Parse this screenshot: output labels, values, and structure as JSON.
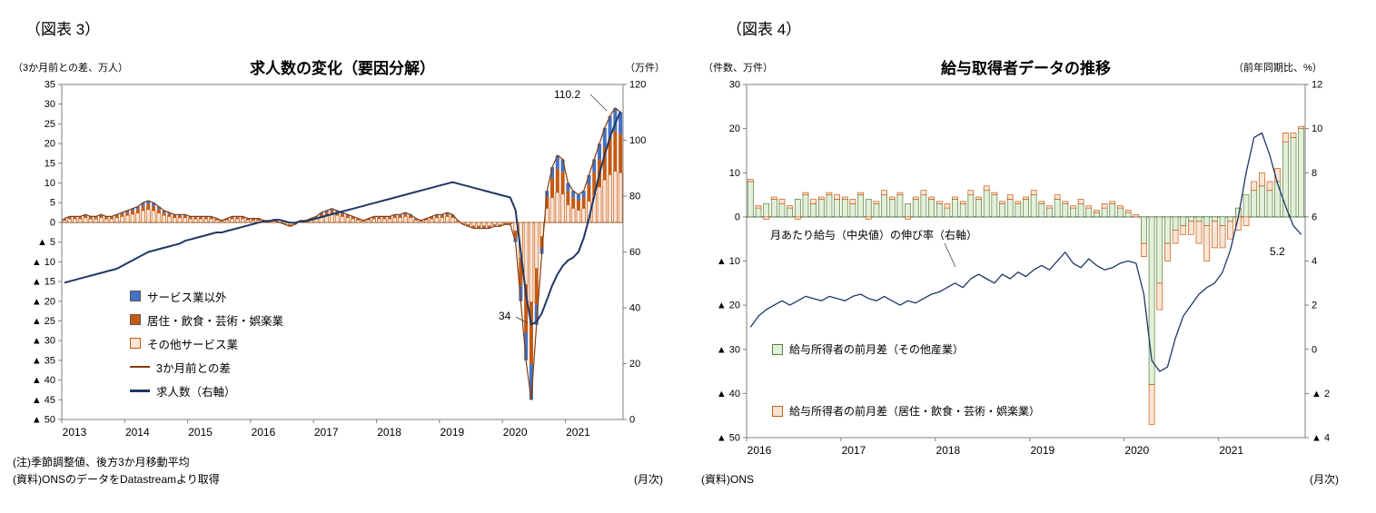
{
  "page": {
    "left": {
      "fig_label": "（図表 3）",
      "note1": "(注)季節調整値、後方3か月移動平均",
      "note2": "(資料)ONSのデータをDatastreamより取得",
      "freq": "(月次)"
    },
    "right": {
      "fig_label": "（図表 4）",
      "note1": "(資料)ONS",
      "freq": "(月次)"
    }
  },
  "chart_data": [
    {
      "type": "bar+line",
      "title": "求人数の変化（要因分解）",
      "left_axis_caption": "（3か月前との差、万人）",
      "right_axis_caption": "（万件）",
      "left_range": [
        -50,
        35
      ],
      "right_range": [
        0,
        120
      ],
      "left_ticks": [
        "35",
        "30",
        "25",
        "20",
        "15",
        "10",
        "5",
        "0",
        "▲ 5",
        "▲ 10",
        "▲ 15",
        "▲ 20",
        "▲ 25",
        "▲ 30",
        "▲ 35",
        "▲ 40",
        "▲ 45",
        "▲ 50"
      ],
      "right_ticks": [
        "120",
        "100",
        "80",
        "60",
        "40",
        "20",
        "0"
      ],
      "x_ticks": [
        "2013",
        "2014",
        "2015",
        "2016",
        "2017",
        "2018",
        "2019",
        "2020",
        "2021"
      ],
      "annotations": {
        "peak": "110.2",
        "trough": "34"
      },
      "series": [
        {
          "name": "その他サービス業",
          "color": "#FBE5D6",
          "stroke": "#C55A11",
          "values": [
            0.5,
            0.9,
            0.9,
            0.9,
            1.2,
            0.9,
            0.9,
            1.2,
            0.9,
            0.9,
            1.2,
            1.5,
            1.8,
            2.1,
            2.4,
            3,
            3.3,
            3,
            2.4,
            1.8,
            1.5,
            1.2,
            1.2,
            1.2,
            0.9,
            0.9,
            0.9,
            0.9,
            0.9,
            0.6,
            0.3,
            0.6,
            0.9,
            0.9,
            0.9,
            0.6,
            0.5,
            0.5,
            0.3,
            0.3,
            0.3,
            0,
            -0.3,
            -0.6,
            -0.3,
            0.3,
            0.3,
            0.5,
            0.9,
            1.5,
            1.8,
            2.1,
            1.8,
            1.5,
            1.2,
            0.9,
            0.6,
            0.3,
            0.6,
            0.9,
            0.9,
            0.9,
            0.9,
            1.2,
            1.2,
            1.5,
            1.2,
            0.6,
            0.3,
            0.6,
            0.9,
            1.2,
            1.2,
            1.5,
            1.2,
            0.3,
            -0.3,
            -0.6,
            -0.9,
            -0.9,
            -0.9,
            -0.9,
            -0.6,
            -0.6,
            -0.2,
            -0.2,
            -2.2,
            -9,
            -15.8,
            -20.2,
            -11.7,
            -3.6,
            3.6,
            6.3,
            7.6,
            7.2,
            4.5,
            3.6,
            3.1,
            3.6,
            5.4,
            7.2,
            9,
            10.8,
            12.1,
            13,
            12.6
          ]
        },
        {
          "name": "居住・飲食・芸術・娯楽業",
          "color": "#C55A11",
          "values": [
            0.3,
            0.4,
            0.4,
            0.4,
            0.5,
            0.4,
            0.4,
            0.5,
            0.4,
            0.4,
            0.5,
            0.6,
            0.7,
            0.9,
            1,
            1.2,
            1.4,
            1.2,
            1,
            0.7,
            0.6,
            0.5,
            0.5,
            0.5,
            0.4,
            0.4,
            0.4,
            0.4,
            0.4,
            0.2,
            0.1,
            0.2,
            0.4,
            0.4,
            0.4,
            0.2,
            0.3,
            0.3,
            0.1,
            0.1,
            0.1,
            0,
            -0.1,
            -0.2,
            -0.1,
            0.1,
            0.1,
            0.3,
            0.4,
            0.6,
            0.7,
            0.9,
            0.7,
            0.6,
            0.5,
            0.4,
            0.2,
            0.1,
            0.2,
            0.4,
            0.4,
            0.4,
            0.4,
            0.5,
            0.5,
            0.6,
            0.5,
            0.2,
            0.1,
            0.2,
            0.4,
            0.5,
            0.5,
            0.6,
            0.5,
            0.1,
            -0.1,
            -0.2,
            -0.4,
            -0.4,
            -0.4,
            -0.4,
            -0.2,
            -0.2,
            -0.2,
            -0.2,
            -1.8,
            -7,
            -12.2,
            -15.8,
            -9.1,
            -2.8,
            2.8,
            4.9,
            6,
            5.6,
            3.5,
            2.8,
            2.5,
            2.8,
            4.2,
            5.6,
            7,
            8.4,
            9.5,
            10.2,
            9.8
          ]
        },
        {
          "name": "サービス業以外",
          "color": "#4472C4",
          "values": [
            0.2,
            0.2,
            0.2,
            0.2,
            0.3,
            0.2,
            0.2,
            0.3,
            0.2,
            0.2,
            0.3,
            0.4,
            0.5,
            0.5,
            0.6,
            0.8,
            0.8,
            0.8,
            0.6,
            0.5,
            0.4,
            0.3,
            0.3,
            0.3,
            0.2,
            0.2,
            0.2,
            0.2,
            0.2,
            0.2,
            0.1,
            0.2,
            0.2,
            0.2,
            0.2,
            0.2,
            0.2,
            0.2,
            0.1,
            0.1,
            0.1,
            0,
            -0.1,
            -0.2,
            -0.1,
            0.1,
            0.1,
            0.2,
            0.2,
            0.4,
            0.5,
            0.5,
            0.5,
            0.4,
            0.3,
            0.2,
            0.2,
            0.1,
            0.2,
            0.2,
            0.2,
            0.2,
            0.2,
            0.3,
            0.3,
            0.4,
            0.3,
            0.2,
            0.1,
            0.2,
            0.2,
            0.3,
            0.3,
            0.4,
            0.3,
            0.1,
            -0.1,
            -0.2,
            -0.2,
            -0.2,
            -0.2,
            -0.2,
            -0.2,
            -0.2,
            -0.1,
            -0.1,
            -1,
            -4,
            -7,
            -9,
            -5.2,
            -1.6,
            1.6,
            2.8,
            3.4,
            3.2,
            2,
            1.6,
            1.4,
            1.6,
            2.4,
            3.2,
            4,
            4.8,
            5.4,
            5.8,
            5.6
          ]
        }
      ],
      "lines": [
        {
          "name": "3か月前との差",
          "color": "#843C0C",
          "axis": "left",
          "width": 1.2,
          "values": [
            1,
            1.5,
            1.5,
            1.5,
            2,
            1.5,
            1.5,
            2,
            1.5,
            1.5,
            2,
            2.5,
            3,
            3.5,
            4,
            5,
            5.5,
            5,
            4,
            3,
            2.5,
            2,
            2,
            2,
            1.5,
            1.5,
            1.5,
            1.5,
            1.5,
            1,
            0.5,
            1,
            1.5,
            1.5,
            1.5,
            1,
            1,
            1,
            0.5,
            0.5,
            0.5,
            0,
            -0.5,
            -1,
            -0.5,
            0.5,
            0.5,
            1,
            1.5,
            2.5,
            3,
            3.5,
            3,
            2.5,
            2,
            1.5,
            1,
            0.5,
            1,
            1.5,
            1.5,
            1.5,
            1.5,
            2,
            2,
            2.5,
            2,
            1,
            0.5,
            1,
            1.5,
            2,
            2,
            2.5,
            2,
            0.5,
            -0.5,
            -1,
            -1.5,
            -1.5,
            -1.5,
            -1.5,
            -1,
            -1,
            -0.5,
            -0.5,
            -5,
            -20,
            -35,
            -45,
            -26,
            -8,
            8,
            14,
            17,
            16,
            10,
            8,
            7,
            8,
            12,
            16,
            20,
            24,
            27,
            29,
            28
          ]
        },
        {
          "name": "求人数（右軸）",
          "color": "#1F3864",
          "axis": "right",
          "width": 2,
          "values": [
            49,
            49.5,
            50,
            50.5,
            51,
            51.5,
            52,
            52.5,
            53,
            53.5,
            54,
            55,
            56,
            57,
            58,
            59,
            60,
            60.5,
            61,
            61.5,
            62,
            62.5,
            63,
            64,
            64.5,
            65,
            65.5,
            66,
            66.5,
            67,
            67,
            67.5,
            68,
            68.5,
            69,
            69.5,
            70,
            70.5,
            71,
            71,
            71.5,
            71.5,
            71,
            70.5,
            70.5,
            71,
            71,
            71.5,
            72,
            72.5,
            73,
            73.5,
            74,
            74.5,
            75,
            75.5,
            76,
            76.5,
            77,
            77.5,
            78,
            78.5,
            79,
            79.5,
            80,
            80.5,
            81,
            81.5,
            82,
            82.5,
            83,
            83.5,
            84,
            84.5,
            85,
            84.5,
            84,
            83.5,
            83,
            82.5,
            82,
            81.5,
            81,
            80.5,
            80,
            79.5,
            75,
            60,
            45,
            34,
            35,
            38,
            43,
            48,
            52,
            55,
            57,
            58,
            60,
            65,
            72,
            80,
            88,
            95,
            101,
            106,
            110.2
          ]
        }
      ]
    },
    {
      "type": "bar+line",
      "title": "給与取得者データの推移",
      "left_axis_caption": "（件数、万件）",
      "right_axis_caption": "（前年同期比、%）",
      "left_range": [
        -50,
        30
      ],
      "right_range": [
        -4,
        12
      ],
      "left_ticks": [
        "30",
        "20",
        "10",
        "0",
        "▲ 10",
        "▲ 20",
        "▲ 30",
        "▲ 40",
        "▲ 50"
      ],
      "right_ticks": [
        "12",
        "10",
        "8",
        "6",
        "4",
        "2",
        "0",
        "▲ 2",
        "▲ 4"
      ],
      "x_ticks": [
        "2016",
        "2017",
        "2018",
        "2019",
        "2020",
        "2021"
      ],
      "annotations": {
        "end": "5.2"
      },
      "inline_label": "月あたり給与（中央値）の伸び率（右軸）",
      "series": [
        {
          "name": "給与所得者の前月差（その他産業）",
          "color": "#E2EFDA",
          "stroke": "#538135",
          "values": [
            8,
            2,
            3,
            4,
            3,
            2,
            4,
            5,
            3,
            4,
            5,
            4,
            4,
            3,
            5,
            4,
            3,
            5,
            4,
            5,
            3,
            4,
            5,
            4,
            3,
            2,
            4,
            3,
            5,
            4,
            6,
            5,
            3,
            4,
            3,
            4,
            5,
            3,
            2,
            4,
            3,
            2,
            3,
            2,
            1,
            2,
            3,
            2,
            1,
            0,
            -6,
            -38,
            -15,
            -6,
            -3,
            -2,
            -1,
            -1,
            -2,
            -1,
            -2,
            -1,
            2,
            5,
            6,
            7,
            6,
            8,
            17,
            18,
            20
          ]
        },
        {
          "name": "給与所得者の前月差（居住・飲食・芸術・娯楽業）",
          "color": "#FBE5D6",
          "stroke": "#C55A11",
          "values": [
            0.5,
            0.5,
            -0.5,
            0.5,
            1,
            0.5,
            -0.5,
            0.5,
            1,
            0.5,
            0.5,
            1,
            0.5,
            1,
            0.5,
            -0.5,
            0.5,
            1,
            0.5,
            0.5,
            -0.5,
            0.5,
            1,
            0.5,
            0.5,
            1,
            0.5,
            0.5,
            1,
            0.5,
            1,
            0.5,
            0.5,
            1,
            0.5,
            0.5,
            1,
            0.5,
            0.5,
            1,
            0.5,
            0.5,
            1,
            0.5,
            0.5,
            1,
            0.5,
            0.5,
            0.5,
            0.5,
            -3,
            -9,
            -6,
            -4,
            -3,
            -2,
            -3,
            -5,
            -8,
            -6,
            -5,
            -4,
            -3,
            -2,
            2,
            3,
            2,
            3,
            2,
            1,
            0.5
          ]
        }
      ],
      "lines": [
        {
          "name": "月あたり給与（中央値）の伸び率（右軸）",
          "color": "#1F3864",
          "axis": "right",
          "width": 1.3,
          "values": [
            1,
            1.5,
            1.8,
            2,
            2.2,
            2,
            2.2,
            2.4,
            2.3,
            2.2,
            2.4,
            2.3,
            2.2,
            2.4,
            2.5,
            2.3,
            2.2,
            2.4,
            2.2,
            2,
            2.2,
            2.1,
            2.3,
            2.5,
            2.6,
            2.8,
            3,
            2.8,
            3.2,
            3.4,
            3.2,
            3,
            3.4,
            3.2,
            3.5,
            3.3,
            3.6,
            3.8,
            3.6,
            4,
            4.4,
            3.9,
            3.7,
            4.1,
            3.8,
            3.6,
            3.7,
            3.9,
            4,
            3.9,
            2.5,
            -0.5,
            -1,
            -0.8,
            0.5,
            1.5,
            2,
            2.5,
            2.8,
            3,
            3.5,
            4.5,
            6,
            8,
            9.6,
            9.8,
            8.8,
            7.5,
            6.5,
            5.6,
            5.2
          ]
        }
      ]
    }
  ]
}
